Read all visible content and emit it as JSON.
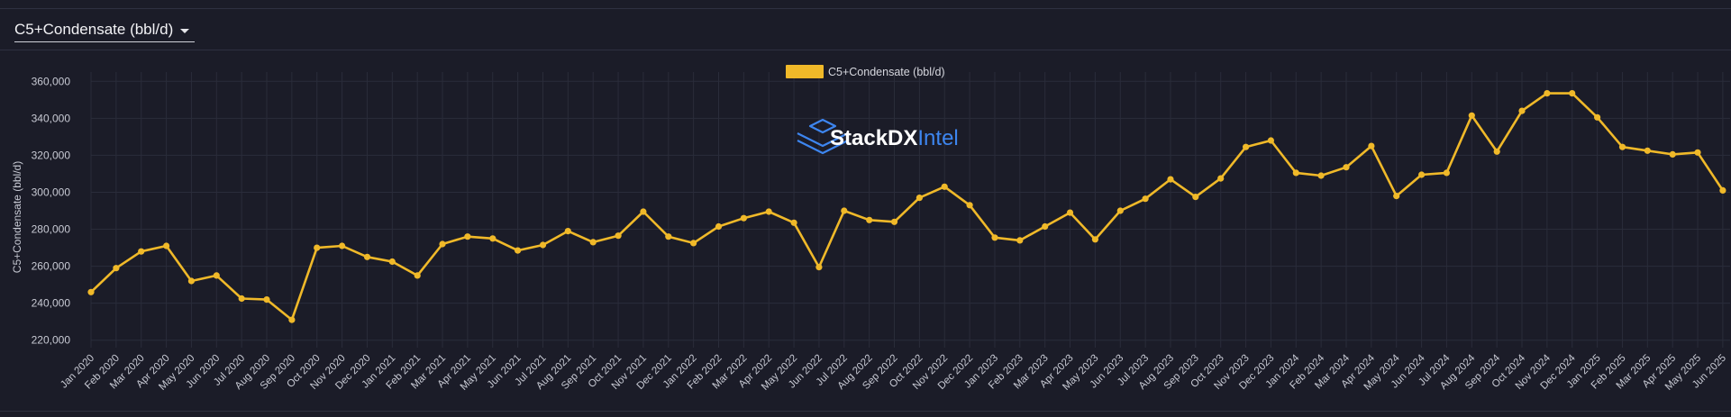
{
  "selector": {
    "label": "C5+Condensate (bbl/d)"
  },
  "watermark": {
    "brand": "StackDX",
    "suffix": "Intel"
  },
  "colors": {
    "series": "#f0b929",
    "background": "#1b1c28",
    "grid": "#2a2c3a",
    "watermark_blue": "#3d86f0"
  },
  "chart_data": {
    "type": "line",
    "title": "",
    "ylabel": "C5+Condensate (bbl/d)",
    "xlabel": "",
    "ylim": [
      215000,
      365000
    ],
    "yticks": [
      220000,
      240000,
      260000,
      280000,
      300000,
      320000,
      340000,
      360000
    ],
    "ytick_labels": [
      "220,000",
      "240,000",
      "260,000",
      "280,000",
      "300,000",
      "320,000",
      "340,000",
      "360,000"
    ],
    "grid": true,
    "legend_position": "top-center",
    "categories": [
      "Jan 2020",
      "Feb 2020",
      "Mar 2020",
      "Apr 2020",
      "May 2020",
      "Jun 2020",
      "Jul 2020",
      "Aug 2020",
      "Sep 2020",
      "Oct 2020",
      "Nov 2020",
      "Dec 2020",
      "Jan 2021",
      "Feb 2021",
      "Mar 2021",
      "Apr 2021",
      "May 2021",
      "Jun 2021",
      "Jul 2021",
      "Aug 2021",
      "Sep 2021",
      "Oct 2021",
      "Nov 2021",
      "Dec 2021",
      "Jan 2022",
      "Feb 2022",
      "Mar 2022",
      "Apr 2022",
      "May 2022",
      "Jun 2022",
      "Jul 2022",
      "Aug 2022",
      "Sep 2022",
      "Oct 2022",
      "Nov 2022",
      "Dec 2022",
      "Jan 2023",
      "Feb 2023",
      "Mar 2023",
      "Apr 2023",
      "May 2023",
      "Jun 2023",
      "Jul 2023",
      "Aug 2023",
      "Sep 2023",
      "Oct 2023",
      "Nov 2023",
      "Dec 2023",
      "Jan 2024",
      "Feb 2024",
      "Mar 2024",
      "Apr 2024",
      "May 2024",
      "Jun 2024",
      "Jul 2024",
      "Aug 2024",
      "Sep 2024",
      "Oct 2024",
      "Nov 2024",
      "Dec 2024",
      "Jan 2025",
      "Feb 2025",
      "Mar 2025",
      "Apr 2025",
      "May 2025",
      "Jun 2025"
    ],
    "series": [
      {
        "name": "C5+Condensate (bbl/d)",
        "values": [
          246000,
          259000,
          268000,
          271000,
          252000,
          255000,
          242500,
          242000,
          231000,
          270000,
          271000,
          265000,
          262500,
          255000,
          272000,
          276000,
          275000,
          268500,
          271500,
          279000,
          273000,
          276500,
          289500,
          276000,
          272500,
          281500,
          286000,
          289500,
          283500,
          259500,
          290000,
          285000,
          284000,
          297000,
          303000,
          293000,
          275500,
          274000,
          281500,
          289000,
          274500,
          290000,
          296500,
          307000,
          297500,
          307500,
          324500,
          328000,
          310500,
          309000,
          313500,
          325000,
          298000,
          309500,
          310500,
          341500,
          322000,
          344000,
          353500,
          353500,
          340500,
          324500,
          322500,
          320500,
          321500,
          301000
        ]
      }
    ]
  }
}
